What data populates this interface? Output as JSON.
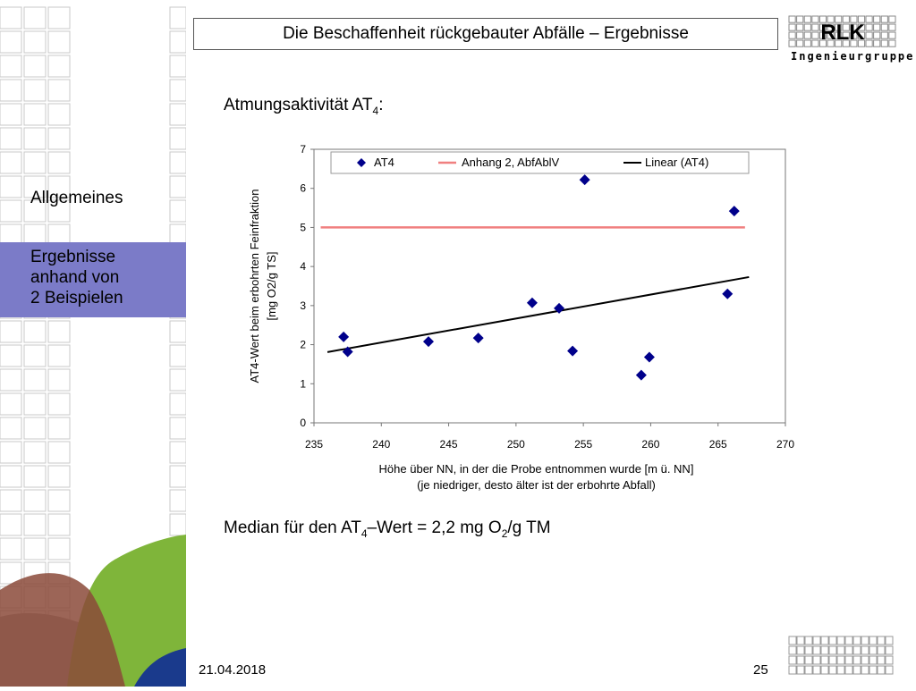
{
  "header": {
    "title": "Die Beschaffenheit rückgebauter Abfälle – Ergebnisse"
  },
  "logo": {
    "text": "RLK",
    "subtitle": "Ingenieurgruppe"
  },
  "sidebar": {
    "items": [
      {
        "label": "Allgemeines",
        "active": false
      },
      {
        "label_lines": [
          "Ergebnisse",
          "anhand von",
          "2 Beispielen"
        ],
        "active": true
      }
    ]
  },
  "subtitle": {
    "text": "Atmungsaktivität AT",
    "sub": "4",
    "suffix": ":"
  },
  "median": {
    "part1": "Median für den AT",
    "sub1": "4",
    "part2": "–Wert = 2,2 mg O",
    "sub2": "2",
    "part3": "/g TM"
  },
  "footer": {
    "date": "21.04.2018",
    "page": "25"
  },
  "colors": {
    "accent": "#7b7bc8",
    "marker": "#00008b",
    "limit_line": "#f08080",
    "trend_line": "#000000"
  },
  "chart_data": {
    "type": "scatter",
    "xlabel_lines": [
      "Höhe über NN, in der die Probe entnommen wurde [m ü. NN]",
      "(je niedriger, desto älter ist der erbohrte Abfall)"
    ],
    "ylabel_lines": [
      "AT4-Wert beim erbohrten Feinfraktion",
      "[mg O2/g TS]"
    ],
    "xlim": [
      235,
      270
    ],
    "ylim": [
      0,
      7
    ],
    "xticks": [
      235,
      240,
      245,
      250,
      255,
      260,
      265,
      270
    ],
    "yticks": [
      0,
      1,
      2,
      3,
      4,
      5,
      6,
      7
    ],
    "legend_position": "top",
    "series": [
      {
        "name": "AT4",
        "kind": "points",
        "x": [
          237.2,
          237.5,
          243.5,
          247.2,
          251.2,
          253.2,
          254.2,
          255.1,
          259.3,
          259.9,
          265.7,
          266.2
        ],
        "y": [
          2.2,
          1.82,
          2.08,
          2.17,
          3.07,
          2.93,
          1.84,
          6.22,
          1.22,
          1.68,
          3.3,
          5.42
        ]
      },
      {
        "name": "Anhang 2, AbfAblV",
        "kind": "line",
        "x": [
          235.5,
          267.0
        ],
        "y": [
          5.0,
          5.0
        ]
      },
      {
        "name": "Linear (AT4)",
        "kind": "line",
        "x": [
          236.0,
          267.3
        ],
        "y": [
          1.81,
          3.73
        ]
      }
    ]
  }
}
